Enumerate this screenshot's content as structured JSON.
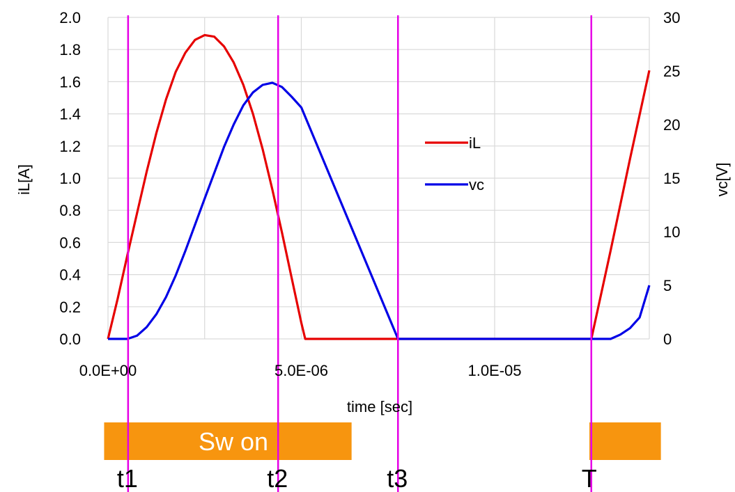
{
  "chart_data": {
    "type": "line",
    "title": "",
    "xlabel": "time [sec]",
    "ylabel_left": "iL[A]",
    "ylabel_right": "vc[V]",
    "xlim": [
      0,
      1.4e-05
    ],
    "ylim_left": [
      0,
      2.0
    ],
    "ylim_right": [
      0,
      30
    ],
    "grid": true,
    "legend_position": "center-right",
    "x_ticks": [
      0,
      5e-06,
      1e-05
    ],
    "x_tick_labels": [
      "0.0E+00",
      "5.0E-06",
      "1.0E-05"
    ],
    "y_left_ticks": [
      0,
      0.2,
      0.4,
      0.6,
      0.8,
      1.0,
      1.2,
      1.4,
      1.6,
      1.8,
      2.0
    ],
    "y_left_tick_labels": [
      "0.0",
      "0.2",
      "0.4",
      "0.6",
      "0.8",
      "1.0",
      "1.2",
      "1.4",
      "1.6",
      "1.8",
      "2.0"
    ],
    "y_right_ticks": [
      0,
      5,
      10,
      15,
      20,
      25,
      30
    ],
    "y_right_tick_labels": [
      "0",
      "5",
      "10",
      "15",
      "20",
      "25",
      "30"
    ],
    "series": [
      {
        "name": "iL",
        "axis": "left",
        "color": "#e60000",
        "points": [
          [
            0,
            0
          ],
          [
            2.5e-07,
            0.25
          ],
          [
            5e-07,
            0.52
          ],
          [
            7.5e-07,
            0.78
          ],
          [
            1e-06,
            1.04
          ],
          [
            1.25e-06,
            1.28
          ],
          [
            1.5e-06,
            1.49
          ],
          [
            1.75e-06,
            1.66
          ],
          [
            2e-06,
            1.78
          ],
          [
            2.25e-06,
            1.86
          ],
          [
            2.5e-06,
            1.89
          ],
          [
            2.75e-06,
            1.88
          ],
          [
            3e-06,
            1.82
          ],
          [
            3.25e-06,
            1.72
          ],
          [
            3.5e-06,
            1.58
          ],
          [
            3.75e-06,
            1.4
          ],
          [
            4e-06,
            1.18
          ],
          [
            4.25e-06,
            0.93
          ],
          [
            4.5e-06,
            0.66
          ],
          [
            4.75e-06,
            0.38
          ],
          [
            5e-06,
            0.1
          ],
          [
            5.1e-06,
            0
          ],
          [
            7.5e-06,
            0
          ],
          [
            1.25e-05,
            0
          ],
          [
            1.3e-05,
            0.55
          ],
          [
            1.35e-05,
            1.12
          ],
          [
            1.4e-05,
            1.67
          ]
        ]
      },
      {
        "name": "vc",
        "axis": "right",
        "color": "#0000e6",
        "points": [
          [
            0,
            0
          ],
          [
            5e-07,
            0
          ],
          [
            7.5e-07,
            0.3
          ],
          [
            1e-06,
            1.1
          ],
          [
            1.25e-06,
            2.3
          ],
          [
            1.5e-06,
            3.9
          ],
          [
            1.75e-06,
            5.9
          ],
          [
            2e-06,
            8.2
          ],
          [
            2.5e-06,
            13.1
          ],
          [
            3e-06,
            17.9
          ],
          [
            3.25e-06,
            20.0
          ],
          [
            3.5e-06,
            21.8
          ],
          [
            3.75e-06,
            23.0
          ],
          [
            4e-06,
            23.7
          ],
          [
            4.25e-06,
            23.9
          ],
          [
            4.5e-06,
            23.5
          ],
          [
            4.75e-06,
            22.6
          ],
          [
            5e-06,
            21.6
          ],
          [
            7.5e-06,
            0
          ],
          [
            1.25e-05,
            0
          ],
          [
            1.3e-05,
            0
          ],
          [
            1.325e-05,
            0.4
          ],
          [
            1.35e-05,
            1.0
          ],
          [
            1.375e-05,
            2.0
          ],
          [
            1.4e-05,
            5.0
          ]
        ]
      }
    ],
    "markers": [
      {
        "label": "t1",
        "x": 5.2e-07,
        "color": "#e600e6"
      },
      {
        "label": "t2",
        "x": 4.4e-06,
        "color": "#e600e6"
      },
      {
        "label": "t3",
        "x": 7.5e-06,
        "color": "#e600e6"
      },
      {
        "label": "T",
        "x": 1.25e-05,
        "color": "#e600e6"
      }
    ],
    "switch_bars": [
      {
        "label": "Sw on",
        "x_start": -1e-07,
        "x_end": 6.3e-06,
        "color": "#f7950f"
      },
      {
        "label": "",
        "x_start": 1.245e-05,
        "x_end": 1.43e-05,
        "color": "#f7950f"
      }
    ]
  }
}
